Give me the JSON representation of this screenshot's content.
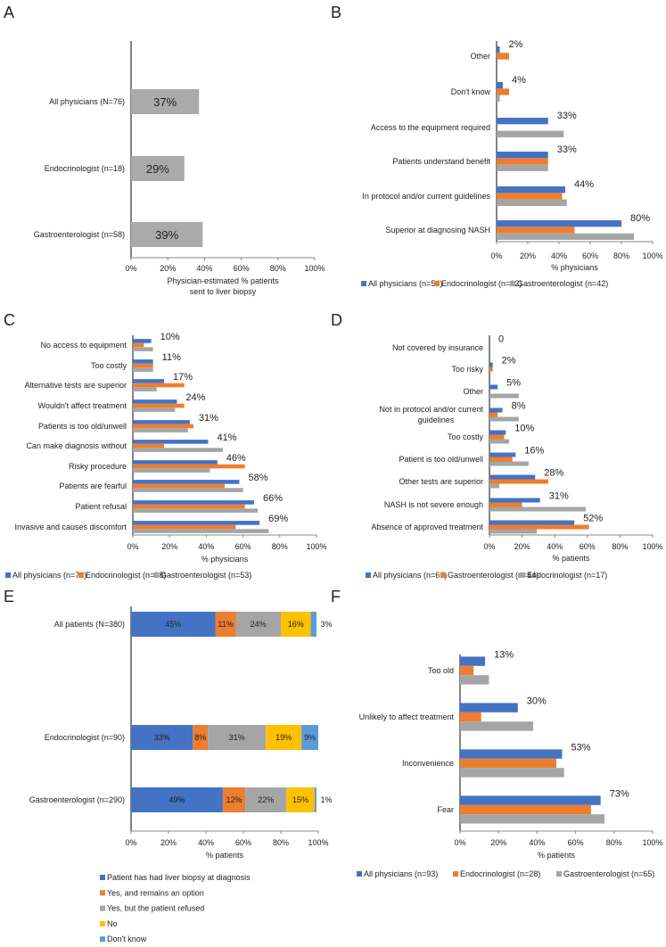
{
  "colors": {
    "blue": "#4472c4",
    "orange": "#ed7d31",
    "gray": "#a5a5a5",
    "yellow": "#ffc000",
    "lightblue": "#5b9bd5"
  },
  "chart_data": [
    {
      "panel": "A",
      "type": "bar",
      "orientation": "horizontal",
      "categories": [
        "All physicians (N=76)",
        "Endocrinologist (n=18)",
        "Gastroenterologist (n=58)"
      ],
      "series": [
        {
          "values": [
            37,
            29,
            39
          ],
          "color": "#aaaaaa",
          "labels": [
            "37%",
            "29%",
            "39%"
          ]
        }
      ],
      "xlabel": [
        "Physician-estimated % patients",
        "sent to liver biopsy"
      ],
      "xticks": [
        "0%",
        "20%",
        "40%",
        "60%",
        "80%",
        "100%"
      ],
      "xlim": [
        0,
        100
      ],
      "grid": false
    },
    {
      "panel": "B",
      "type": "bar",
      "orientation": "horizontal",
      "categories": [
        "Other",
        "Don't know",
        "Access to the equipment required",
        "Patients understand benefit",
        "In protocol and/or current guidelines",
        "Superior at diagnosing NASH"
      ],
      "series": [
        {
          "name": "All physicians (n=54)",
          "color": "#4472c4",
          "values": [
            2,
            4,
            33,
            33,
            44,
            80
          ],
          "labels": [
            "2%",
            "4%",
            "33%",
            "33%",
            "44%",
            "80%"
          ]
        },
        {
          "name": "Endocrinologist (n=12)",
          "color": "#ed7d31",
          "values": [
            8,
            8,
            0,
            33,
            42,
            50
          ]
        },
        {
          "name": "Gastroenterologist (n=42)",
          "color": "#a5a5a5",
          "values": [
            0,
            2,
            43,
            33,
            45,
            88
          ]
        }
      ],
      "xlabel": [
        "% physicians"
      ],
      "xticks": [
        "0%",
        "20%",
        "40%",
        "60%",
        "80%",
        "100%"
      ],
      "xlim": [
        0,
        100
      ],
      "legend": "bottom",
      "grid": false
    },
    {
      "panel": "C",
      "type": "bar",
      "orientation": "horizontal",
      "categories": [
        "No access to equipment",
        "Too costly",
        "Alternative tests are superior",
        "Wouldn't affect treatment",
        "Patients is too old/unwell",
        "Can make diagnosis without",
        "Risky procedure",
        "Patients are fearful",
        "Patient refusal",
        "Invasive and causes discomfort"
      ],
      "series": [
        {
          "name": "All physicians (n=71)",
          "color": "#4472c4",
          "values": [
            10,
            11,
            17,
            24,
            31,
            41,
            46,
            58,
            66,
            69
          ],
          "labels": [
            "10%",
            "11%",
            "17%",
            "24%",
            "31%",
            "41%",
            "46%",
            "58%",
            "66%",
            "69%"
          ]
        },
        {
          "name": "Endocrinologist (n=18)",
          "color": "#ed7d31",
          "values": [
            6,
            11,
            28,
            28,
            33,
            17,
            61,
            50,
            61,
            56
          ]
        },
        {
          "name": "Gastroenterologist (n=53)",
          "color": "#a5a5a5",
          "values": [
            11,
            11,
            13,
            23,
            30,
            49,
            42,
            60,
            68,
            74
          ]
        }
      ],
      "xlabel": [
        "% physicians"
      ],
      "xticks": [
        "0%",
        "20%",
        "40%",
        "60%",
        "80%",
        "100%"
      ],
      "xlim": [
        0,
        100
      ],
      "legend": "bottom",
      "grid": false
    },
    {
      "panel": "D",
      "type": "bar",
      "orientation": "horizontal",
      "categories": [
        "Not covered by insurance",
        "Too risky",
        "Other",
        [
          "Not in protocol and/or current",
          "guidelines"
        ],
        "Too costly",
        "Patient is too old/unwell",
        "Other tests are superior",
        "NASH is not severe enough",
        "Absence of approved treatment"
      ],
      "series": [
        {
          "name": "All physicians (n=61)",
          "color": "#4472c4",
          "values": [
            0,
            2,
            5,
            8,
            10,
            16,
            28,
            31,
            52
          ],
          "labels": [
            "0",
            "2%",
            "5%",
            "8%",
            "10%",
            "16%",
            "28%",
            "31%",
            "52%"
          ]
        },
        {
          "name": "Gastroenterologist (n=44)",
          "color": "#ed7d31",
          "values": [
            0,
            2,
            0,
            5,
            9,
            14,
            36,
            20,
            61
          ]
        },
        {
          "name": "Endocrinologist (n=17)",
          "color": "#a5a5a5",
          "values": [
            0,
            0,
            18,
            18,
            12,
            24,
            6,
            59,
            29
          ]
        }
      ],
      "xlabel": [
        "% patients"
      ],
      "xticks": [
        "0%",
        "20%",
        "40%",
        "60%",
        "80%",
        "100%"
      ],
      "xlim": [
        0,
        100
      ],
      "legend": "bottom",
      "grid": false
    },
    {
      "panel": "E",
      "type": "bar",
      "orientation": "horizontal",
      "stacked": true,
      "categories": [
        "All patients (N=380)",
        "Endocrinologist (n=90)",
        "Gastroenterologist (n=290)"
      ],
      "series": [
        {
          "name": "Patient has had liver biopsy at diagnosis",
          "color": "#4472c4",
          "values": [
            45,
            33,
            49
          ],
          "labels": [
            "45%",
            "33%",
            "49%"
          ]
        },
        {
          "name": "Yes, and remains an option",
          "color": "#ed7d31",
          "values": [
            11,
            8,
            12
          ],
          "labels": [
            "11%",
            "8%",
            "12%"
          ]
        },
        {
          "name": "Yes, but the patient refused",
          "color": "#a5a5a5",
          "values": [
            24,
            31,
            22
          ],
          "labels": [
            "24%",
            "31%",
            "22%"
          ]
        },
        {
          "name": "No",
          "color": "#ffc000",
          "values": [
            16,
            19,
            15
          ],
          "labels": [
            "16%",
            "19%",
            "15%"
          ]
        },
        {
          "name": "Don't know",
          "color": "#5b9bd5",
          "values": [
            3,
            9,
            1
          ],
          "labels": [
            "3%",
            "9%",
            "1%"
          ]
        }
      ],
      "xlabel": [
        "% patients"
      ],
      "xticks": [
        "0%",
        "20%",
        "40%",
        "60%",
        "80%",
        "100%"
      ],
      "xlim": [
        0,
        100
      ],
      "legend": "bottom",
      "grid": false
    },
    {
      "panel": "F",
      "type": "bar",
      "orientation": "horizontal",
      "categories": [
        "Too old",
        "Unlikely to affect treatment",
        "Inconvenience",
        "Fear"
      ],
      "series": [
        {
          "name": "All physicians (n=93)",
          "color": "#4472c4",
          "values": [
            13,
            30,
            53,
            73
          ],
          "labels": [
            "13%",
            "30%",
            "53%",
            "73%"
          ]
        },
        {
          "name": "Endocrinologist (n=28)",
          "color": "#ed7d31",
          "values": [
            7,
            11,
            50,
            68
          ]
        },
        {
          "name": "Gastroenterologist (n=65)",
          "color": "#a5a5a5",
          "values": [
            15,
            38,
            54,
            75
          ]
        }
      ],
      "xlabel": [
        "% patients"
      ],
      "xticks": [
        "0%",
        "20%",
        "40%",
        "60%",
        "80%",
        "100%"
      ],
      "xlim": [
        0,
        100
      ],
      "legend": "bottom",
      "grid": false
    }
  ]
}
